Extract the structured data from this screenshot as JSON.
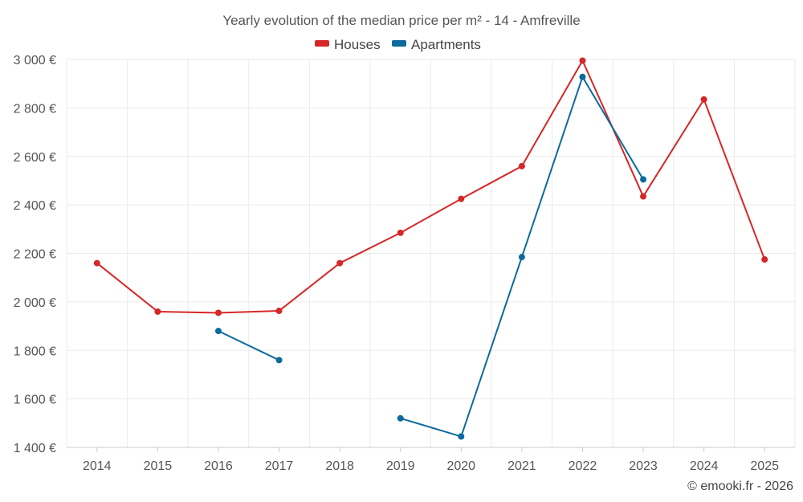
{
  "chart_data": {
    "type": "line",
    "title": "Yearly evolution of the median price per m² - 14 - Amfreville",
    "categories": [
      "2014",
      "2015",
      "2016",
      "2017",
      "2018",
      "2019",
      "2020",
      "2021",
      "2022",
      "2023",
      "2024",
      "2025"
    ],
    "ylim": [
      1400,
      3000
    ],
    "y_ticks": [
      1400,
      1600,
      1800,
      2000,
      2200,
      2400,
      2600,
      2800,
      3000
    ],
    "y_tick_labels": [
      "1 400 €",
      "1 600 €",
      "1 800 €",
      "2 000 €",
      "2 200 €",
      "2 400 €",
      "2 600 €",
      "2 800 €",
      "3 000 €"
    ],
    "legend_position": "top-center",
    "grid": true,
    "series": [
      {
        "name": "Houses",
        "color": "#d62728",
        "values": [
          2160,
          1960,
          1955,
          1963,
          2160,
          2285,
          2425,
          2560,
          2995,
          2435,
          2835,
          2175
        ]
      },
      {
        "name": "Apartments",
        "color": "#0c6a9c",
        "values": [
          null,
          null,
          1880,
          1760,
          null,
          1520,
          1445,
          2185,
          2928,
          2505,
          null,
          null
        ]
      }
    ],
    "credit": "© emooki.fr - 2026"
  }
}
